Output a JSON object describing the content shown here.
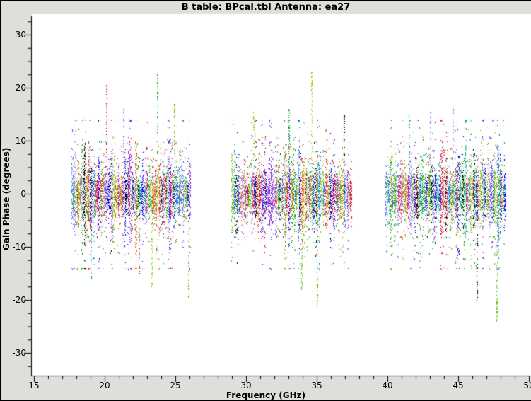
{
  "title": "B table: BPcal.tbl   Antenna: ea27",
  "colors": {
    "window_bg": "#e0dedb",
    "plot_bg": "#ffffff",
    "axis": "#000000",
    "text": "#000000"
  },
  "chart_data": {
    "type": "scatter",
    "title": "B table: BPcal.tbl   Antenna: ea27",
    "xlabel": "Frequency (GHz)",
    "ylabel": "Gain Phase (degrees)",
    "xlim": [
      14.8,
      50.2
    ],
    "ylim": [
      -34.3,
      33.5
    ],
    "x_major_ticks": [
      15,
      20,
      25,
      30,
      35,
      40,
      45,
      50
    ],
    "x_minor_step": 1,
    "y_major_ticks": [
      30,
      20,
      10,
      0,
      -10,
      -20,
      -30
    ],
    "y_minor_step": 2.5,
    "grid": false,
    "legend": "none",
    "marker": "1px-dot",
    "point_color_palette": [
      "#0000dd",
      "#2266ff",
      "#00a800",
      "#55bb00",
      "#88cc00",
      "#dd6600",
      "#bb8800",
      "#7a1fcc",
      "#9b6bee",
      "#000000",
      "#d81b60",
      "#009e87",
      "#7a7a00",
      "#cc0033"
    ],
    "description": "Bandpass calibration phase solutions vs frequency: dense vertical columns of colored pixel dots (one column per spectral-window channel) in three receiver bands, core scatter within about +/-8 degrees and occasional spikes to +/-24 degrees.",
    "bands": [
      {
        "label": "18-26 GHz band",
        "f_start": 17.7,
        "f_end": 26.0,
        "core_phase_range": [
          -8,
          8
        ],
        "typical_sigma_deg": 3,
        "column_step_ghz": 0.1
      },
      {
        "label": "29-37 GHz band",
        "f_start": 29.0,
        "f_end": 37.4,
        "core_phase_range": [
          -8,
          8
        ],
        "typical_sigma_deg": 3,
        "column_step_ghz": 0.1
      },
      {
        "label": "40-48 GHz band",
        "f_start": 39.9,
        "f_end": 48.3,
        "core_phase_range": [
          -8,
          8
        ],
        "typical_sigma_deg": 3,
        "column_step_ghz": 0.1
      }
    ],
    "extreme_spikes": [
      {
        "f_ghz": 19.0,
        "phase_deg": -16
      },
      {
        "f_ghz": 20.1,
        "phase_deg": 20.5
      },
      {
        "f_ghz": 21.3,
        "phase_deg": 16
      },
      {
        "f_ghz": 22.4,
        "phase_deg": -15
      },
      {
        "f_ghz": 23.3,
        "phase_deg": -17.5
      },
      {
        "f_ghz": 23.7,
        "phase_deg": 22.5
      },
      {
        "f_ghz": 24.9,
        "phase_deg": 17
      },
      {
        "f_ghz": 25.9,
        "phase_deg": -19.5
      },
      {
        "f_ghz": 30.5,
        "phase_deg": 15.5
      },
      {
        "f_ghz": 33.0,
        "phase_deg": 16
      },
      {
        "f_ghz": 33.9,
        "phase_deg": -18
      },
      {
        "f_ghz": 34.6,
        "phase_deg": 23
      },
      {
        "f_ghz": 35.0,
        "phase_deg": -21
      },
      {
        "f_ghz": 36.9,
        "phase_deg": 15
      },
      {
        "f_ghz": 41.5,
        "phase_deg": 15
      },
      {
        "f_ghz": 43.0,
        "phase_deg": 15.5
      },
      {
        "f_ghz": 44.6,
        "phase_deg": 16.5
      },
      {
        "f_ghz": 46.3,
        "phase_deg": -20
      },
      {
        "f_ghz": 47.7,
        "phase_deg": -24
      }
    ]
  }
}
